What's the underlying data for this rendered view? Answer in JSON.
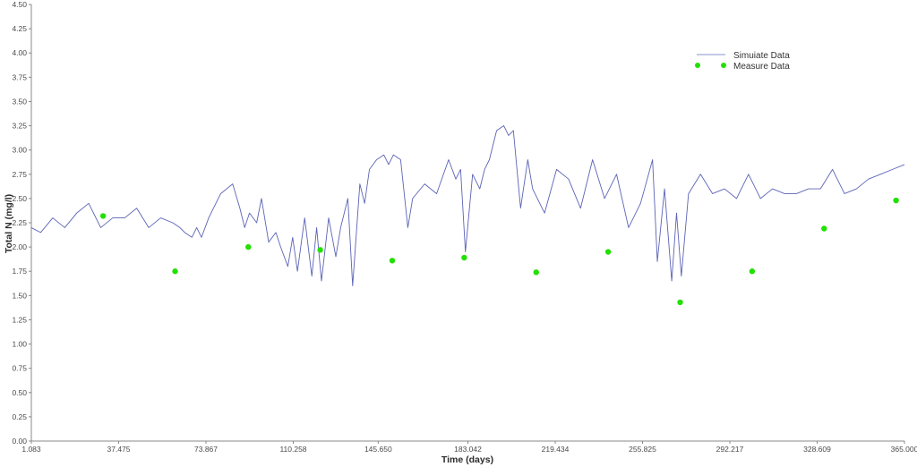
{
  "chart_data": {
    "type": "line",
    "xlabel": "Time (days)",
    "ylabel": "Total N (mg/l)",
    "xlim": [
      1.083,
      365.0
    ],
    "ylim": [
      0.0,
      4.5
    ],
    "x_ticks": [
      "1.083",
      "37.475",
      "73.867",
      "110.258",
      "145.650",
      "183.042",
      "219.434",
      "255.825",
      "292.217",
      "328.609",
      "365.000"
    ],
    "y_ticks": [
      "0.00",
      "0.25",
      "0.50",
      "0.75",
      "1.00",
      "1.25",
      "1.50",
      "1.75",
      "2.00",
      "2.25",
      "2.50",
      "2.75",
      "3.00",
      "3.25",
      "3.50",
      "3.75",
      "4.00",
      "4.25",
      "4.50"
    ],
    "grid": false,
    "legend_position": "top-right",
    "series": [
      {
        "name": "Simuiate Data",
        "kind": "line",
        "color": "#5b63b5",
        "x": [
          1,
          5,
          10,
          15,
          20,
          25,
          30,
          35,
          40,
          45,
          50,
          55,
          60,
          63,
          65,
          68,
          70,
          72,
          75,
          80,
          85,
          88,
          90,
          92,
          95,
          97,
          100,
          103,
          105,
          108,
          110,
          112,
          115,
          118,
          120,
          122,
          125,
          128,
          130,
          133,
          135,
          138,
          140,
          142,
          145,
          148,
          150,
          152,
          155,
          158,
          160,
          165,
          170,
          175,
          178,
          180,
          182,
          185,
          188,
          190,
          192,
          195,
          198,
          200,
          202,
          205,
          208,
          210,
          212,
          215,
          220,
          225,
          230,
          235,
          240,
          245,
          250,
          255,
          260,
          262,
          265,
          268,
          270,
          272,
          275,
          280,
          285,
          290,
          295,
          300,
          305,
          310,
          315,
          320,
          325,
          330,
          335,
          340,
          345,
          350,
          355,
          360,
          365
        ],
        "y": [
          2.2,
          2.15,
          2.3,
          2.2,
          2.35,
          2.45,
          2.2,
          2.3,
          2.3,
          2.4,
          2.2,
          2.3,
          2.25,
          2.2,
          2.15,
          2.1,
          2.2,
          2.1,
          2.3,
          2.55,
          2.65,
          2.4,
          2.2,
          2.35,
          2.25,
          2.5,
          2.05,
          2.15,
          2.0,
          1.8,
          2.1,
          1.75,
          2.3,
          1.7,
          2.2,
          1.65,
          2.3,
          1.9,
          2.2,
          2.5,
          1.6,
          2.65,
          2.45,
          2.8,
          2.9,
          2.95,
          2.85,
          2.95,
          2.9,
          2.2,
          2.5,
          2.65,
          2.55,
          2.9,
          2.7,
          2.8,
          1.95,
          2.75,
          2.6,
          2.8,
          2.9,
          3.2,
          3.25,
          3.15,
          3.2,
          2.4,
          2.9,
          2.6,
          2.5,
          2.35,
          2.8,
          2.7,
          2.4,
          2.9,
          2.5,
          2.75,
          2.2,
          2.45,
          2.9,
          1.85,
          2.6,
          1.65,
          2.35,
          1.7,
          2.55,
          2.75,
          2.55,
          2.6,
          2.5,
          2.75,
          2.5,
          2.6,
          2.55,
          2.55,
          2.6,
          2.6,
          2.8,
          2.55,
          2.6,
          2.7,
          2.75,
          2.8,
          2.85
        ]
      },
      {
        "name": "Measure Data",
        "kind": "scatter",
        "color": "#22e000",
        "x": [
          31.0,
          61.0,
          91.5,
          121.5,
          151.5,
          181.5,
          211.5,
          241.5,
          271.5,
          301.5,
          331.5,
          361.5
        ],
        "y": [
          2.32,
          1.75,
          2.0,
          1.97,
          1.86,
          1.89,
          1.74,
          1.95,
          1.43,
          1.75,
          2.19,
          2.48
        ]
      }
    ]
  }
}
